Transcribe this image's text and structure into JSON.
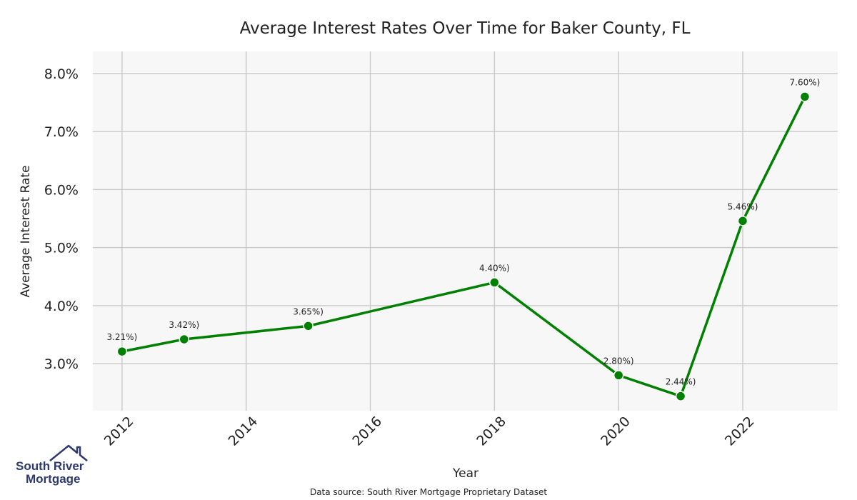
{
  "chart_data": {
    "type": "line",
    "title": "Average Interest Rates Over Time for Baker County, FL",
    "xlabel": "Year",
    "ylabel": "Average Interest Rate",
    "x": [
      2012,
      2013,
      2015,
      2018,
      2020,
      2021,
      2022,
      2023
    ],
    "series": [
      {
        "values": [
          3.21,
          3.42,
          3.65,
          4.4,
          2.8,
          2.44,
          5.46,
          7.6
        ],
        "color": "#008000"
      }
    ],
    "data_labels": [
      "3.21%)",
      "3.42%)",
      "3.65%)",
      "4.40%)",
      "2.80%)",
      "2.44%)",
      "5.46%)",
      "7.60%)"
    ],
    "xticks": [
      2012,
      2014,
      2016,
      2018,
      2020,
      2022
    ],
    "yticks": [
      3.0,
      4.0,
      5.0,
      6.0,
      7.0,
      8.0
    ],
    "ytick_labels": [
      "3.0%",
      "4.0%",
      "5.0%",
      "6.0%",
      "7.0%",
      "8.0%"
    ],
    "xlim": [
      2011.53,
      2023.53
    ],
    "ylim": [
      2.19,
      8.38
    ],
    "grid": true,
    "background": "#f7f7f7",
    "grid_color": "#cccccc"
  },
  "footer": {
    "source": "Data source: South River Mortgage Proprietary Dataset"
  },
  "logo": {
    "line1": "South River",
    "line2": "Mortgage",
    "color": "#2e3a6e"
  }
}
